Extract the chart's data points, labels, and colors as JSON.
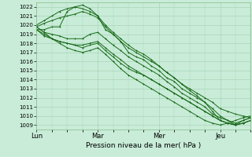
{
  "title": "",
  "xlabel": "Pression niveau de la mer( hPa )",
  "ylabel": "",
  "ylim": [
    1008.5,
    1022.5
  ],
  "yticks": [
    1009,
    1010,
    1011,
    1012,
    1013,
    1014,
    1015,
    1016,
    1017,
    1018,
    1019,
    1020,
    1021,
    1022
  ],
  "xtick_labels": [
    "Lun",
    "Mar",
    "Mer",
    "Jeu"
  ],
  "xtick_positions": [
    0,
    96,
    192,
    288
  ],
  "xlim": [
    0,
    336
  ],
  "background_color": "#c8ecd8",
  "grid_color": "#aad4b8",
  "line_color": "#1a6b1a",
  "line_width": 0.7,
  "marker": "+",
  "marker_size": 2,
  "figsize": [
    3.2,
    2.0
  ],
  "dpi": 100,
  "series": [
    [
      0,
      1019.5,
      12,
      1019.5,
      24,
      1019.8,
      36,
      1019.8,
      48,
      1021.5,
      60,
      1022.0,
      72,
      1022.2,
      84,
      1021.8,
      96,
      1021.0,
      108,
      1019.5,
      120,
      1019.0,
      132,
      1018.2,
      144,
      1017.0,
      156,
      1016.5,
      168,
      1016.2,
      180,
      1015.5,
      192,
      1015.0,
      204,
      1014.2,
      216,
      1013.8,
      228,
      1013.0,
      240,
      1012.5,
      252,
      1012.0,
      264,
      1011.5,
      276,
      1010.5,
      288,
      1009.5,
      300,
      1009.2,
      312,
      1009.0,
      324,
      1009.2,
      336,
      1009.5
    ],
    [
      0,
      1019.8,
      12,
      1019.2,
      24,
      1019.0,
      36,
      1018.8,
      48,
      1018.5,
      60,
      1018.5,
      72,
      1018.5,
      84,
      1019.0,
      96,
      1019.2,
      108,
      1018.5,
      120,
      1017.8,
      132,
      1017.2,
      144,
      1016.5,
      156,
      1016.0,
      168,
      1015.5,
      180,
      1015.0,
      192,
      1014.5,
      204,
      1013.8,
      216,
      1013.2,
      228,
      1012.5,
      240,
      1012.0,
      252,
      1011.5,
      264,
      1011.0,
      276,
      1010.2,
      288,
      1009.8,
      300,
      1009.5,
      312,
      1009.2,
      324,
      1009.5,
      336,
      1009.8
    ],
    [
      0,
      1019.5,
      12,
      1018.8,
      24,
      1018.5,
      36,
      1018.2,
      48,
      1018.0,
      60,
      1017.8,
      72,
      1017.8,
      84,
      1018.0,
      96,
      1018.2,
      108,
      1017.5,
      120,
      1016.8,
      132,
      1016.2,
      144,
      1015.5,
      156,
      1015.0,
      168,
      1014.5,
      180,
      1014.0,
      192,
      1013.5,
      204,
      1013.0,
      216,
      1012.5,
      228,
      1012.0,
      240,
      1011.5,
      252,
      1011.0,
      264,
      1010.5,
      276,
      1010.0,
      288,
      1009.5,
      300,
      1009.2,
      312,
      1009.0,
      324,
      1009.2,
      336,
      1009.5
    ],
    [
      0,
      1019.8,
      12,
      1020.2,
      24,
      1020.5,
      36,
      1020.8,
      48,
      1021.0,
      60,
      1021.2,
      72,
      1021.5,
      84,
      1021.2,
      96,
      1020.8,
      108,
      1019.8,
      120,
      1019.0,
      132,
      1018.2,
      144,
      1017.5,
      156,
      1017.0,
      168,
      1016.5,
      180,
      1016.0,
      192,
      1015.5,
      204,
      1014.8,
      216,
      1014.2,
      228,
      1013.5,
      240,
      1013.0,
      252,
      1012.5,
      264,
      1012.0,
      276,
      1011.5,
      288,
      1010.8,
      300,
      1010.5,
      312,
      1010.2,
      324,
      1010.0,
      336,
      1009.8
    ],
    [
      0,
      1020.0,
      12,
      1020.5,
      24,
      1021.0,
      36,
      1021.5,
      48,
      1021.8,
      60,
      1022.0,
      72,
      1021.8,
      84,
      1021.5,
      96,
      1021.0,
      108,
      1020.0,
      120,
      1019.2,
      132,
      1018.5,
      144,
      1017.8,
      156,
      1017.2,
      168,
      1016.8,
      180,
      1016.2,
      192,
      1015.5,
      204,
      1014.8,
      216,
      1014.2,
      228,
      1013.5,
      240,
      1012.8,
      252,
      1012.2,
      264,
      1011.5,
      276,
      1010.8,
      288,
      1010.0,
      300,
      1009.5,
      312,
      1009.0,
      324,
      1009.2,
      336,
      1009.5
    ],
    [
      0,
      1019.8,
      12,
      1019.2,
      24,
      1018.5,
      36,
      1018.0,
      48,
      1017.5,
      60,
      1017.2,
      72,
      1017.0,
      84,
      1017.2,
      96,
      1017.5,
      108,
      1016.8,
      120,
      1016.0,
      132,
      1015.2,
      144,
      1014.5,
      156,
      1014.0,
      168,
      1013.5,
      180,
      1013.0,
      192,
      1012.5,
      204,
      1012.0,
      216,
      1011.5,
      228,
      1011.0,
      240,
      1010.5,
      252,
      1010.0,
      264,
      1009.5,
      276,
      1009.2,
      288,
      1009.0,
      300,
      1009.2,
      312,
      1009.5,
      324,
      1009.8,
      336,
      1010.0
    ],
    [
      0,
      1019.5,
      12,
      1019.0,
      24,
      1018.5,
      36,
      1018.2,
      48,
      1018.0,
      60,
      1017.8,
      72,
      1017.5,
      84,
      1017.8,
      96,
      1018.0,
      108,
      1017.2,
      120,
      1016.5,
      132,
      1015.8,
      144,
      1015.2,
      156,
      1014.8,
      168,
      1014.5,
      180,
      1014.0,
      192,
      1013.5,
      204,
      1013.0,
      216,
      1012.5,
      228,
      1012.0,
      240,
      1011.5,
      252,
      1011.0,
      264,
      1010.5,
      276,
      1010.0,
      288,
      1009.5,
      300,
      1009.2,
      312,
      1009.0,
      324,
      1009.5,
      336,
      1009.8
    ]
  ]
}
